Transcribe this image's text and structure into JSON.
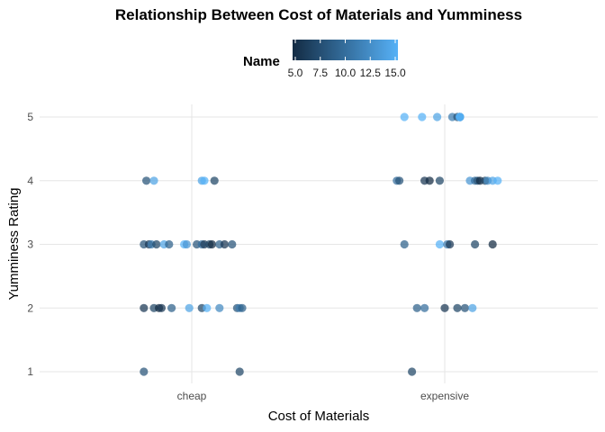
{
  "chart_data": {
    "type": "scatter",
    "title": "Relationship Between Cost of Materials and Yumminess",
    "xlabel": "Cost of Materials",
    "ylabel": "Yumminess Rating",
    "categories": [
      "cheap",
      "expensive"
    ],
    "yticks": [
      1,
      2,
      3,
      4,
      5
    ],
    "ylim": [
      0.8,
      5.2
    ],
    "grid": true,
    "legend": {
      "title": "Name",
      "placement": "top",
      "ticks": [
        "5.0",
        "7.5",
        "10.0",
        "12.5",
        "15.0"
      ],
      "range": [
        5,
        15
      ],
      "color_low": "#132B43",
      "color_high": "#56B1F7"
    },
    "points": [
      {
        "x": "cheap",
        "jitter": -0.19,
        "y": 1,
        "color_value": 8
      },
      {
        "x": "cheap",
        "jitter": 0.19,
        "y": 1,
        "color_value": 7
      },
      {
        "x": "cheap",
        "jitter": -0.19,
        "y": 2,
        "color_value": 6
      },
      {
        "x": "cheap",
        "jitter": -0.15,
        "y": 2,
        "color_value": 7
      },
      {
        "x": "cheap",
        "jitter": -0.13,
        "y": 2,
        "color_value": 5
      },
      {
        "x": "cheap",
        "jitter": -0.12,
        "y": 2,
        "color_value": 6
      },
      {
        "x": "cheap",
        "jitter": -0.08,
        "y": 2,
        "color_value": 9
      },
      {
        "x": "cheap",
        "jitter": -0.01,
        "y": 2,
        "color_value": 14
      },
      {
        "x": "cheap",
        "jitter": 0.04,
        "y": 2,
        "color_value": 7
      },
      {
        "x": "cheap",
        "jitter": 0.06,
        "y": 2,
        "color_value": 15
      },
      {
        "x": "cheap",
        "jitter": 0.11,
        "y": 2,
        "color_value": 12
      },
      {
        "x": "cheap",
        "jitter": 0.18,
        "y": 2,
        "color_value": 8
      },
      {
        "x": "cheap",
        "jitter": 0.19,
        "y": 2,
        "color_value": 11
      },
      {
        "x": "cheap",
        "jitter": 0.2,
        "y": 2,
        "color_value": 9
      },
      {
        "x": "cheap",
        "jitter": -0.19,
        "y": 3,
        "color_value": 8
      },
      {
        "x": "cheap",
        "jitter": -0.17,
        "y": 3,
        "color_value": 6
      },
      {
        "x": "cheap",
        "jitter": -0.16,
        "y": 3,
        "color_value": 11
      },
      {
        "x": "cheap",
        "jitter": -0.14,
        "y": 3,
        "color_value": 7
      },
      {
        "x": "cheap",
        "jitter": -0.11,
        "y": 3,
        "color_value": 14
      },
      {
        "x": "cheap",
        "jitter": -0.09,
        "y": 3,
        "color_value": 9
      },
      {
        "x": "cheap",
        "jitter": -0.03,
        "y": 3,
        "color_value": 15
      },
      {
        "x": "cheap",
        "jitter": -0.02,
        "y": 3,
        "color_value": 13
      },
      {
        "x": "cheap",
        "jitter": 0.02,
        "y": 3,
        "color_value": 8
      },
      {
        "x": "cheap",
        "jitter": 0.04,
        "y": 3,
        "color_value": 10
      },
      {
        "x": "cheap",
        "jitter": 0.05,
        "y": 3,
        "color_value": 6
      },
      {
        "x": "cheap",
        "jitter": 0.07,
        "y": 3,
        "color_value": 7
      },
      {
        "x": "cheap",
        "jitter": 0.08,
        "y": 3,
        "color_value": 5
      },
      {
        "x": "cheap",
        "jitter": 0.11,
        "y": 3,
        "color_value": 9
      },
      {
        "x": "cheap",
        "jitter": 0.13,
        "y": 3,
        "color_value": 6
      },
      {
        "x": "cheap",
        "jitter": 0.16,
        "y": 3,
        "color_value": 8
      },
      {
        "x": "cheap",
        "jitter": -0.18,
        "y": 4,
        "color_value": 8
      },
      {
        "x": "cheap",
        "jitter": -0.15,
        "y": 4,
        "color_value": 14
      },
      {
        "x": "cheap",
        "jitter": 0.04,
        "y": 4,
        "color_value": 14
      },
      {
        "x": "cheap",
        "jitter": 0.05,
        "y": 4,
        "color_value": 15
      },
      {
        "x": "cheap",
        "jitter": 0.09,
        "y": 4,
        "color_value": 7
      },
      {
        "x": "expensive",
        "jitter": -0.16,
        "y": 5,
        "color_value": 15
      },
      {
        "x": "expensive",
        "jitter": -0.09,
        "y": 5,
        "color_value": 15
      },
      {
        "x": "expensive",
        "jitter": -0.03,
        "y": 5,
        "color_value": 14
      },
      {
        "x": "expensive",
        "jitter": 0.03,
        "y": 5,
        "color_value": 11
      },
      {
        "x": "expensive",
        "jitter": 0.05,
        "y": 5,
        "color_value": 8
      },
      {
        "x": "expensive",
        "jitter": 0.06,
        "y": 5,
        "color_value": 10
      },
      {
        "x": "expensive",
        "jitter": 0.06,
        "y": 5,
        "color_value": 12
      },
      {
        "x": "expensive",
        "jitter": 0.06,
        "y": 5,
        "color_value": 13
      },
      {
        "x": "expensive",
        "jitter": 0.06,
        "y": 5,
        "color_value": 14
      },
      {
        "x": "expensive",
        "jitter": 0.06,
        "y": 5,
        "color_value": 13
      },
      {
        "x": "expensive",
        "jitter": 0.06,
        "y": 5,
        "color_value": 14
      },
      {
        "x": "expensive",
        "jitter": 0.06,
        "y": 5,
        "color_value": 15
      },
      {
        "x": "expensive",
        "jitter": -0.19,
        "y": 4,
        "color_value": 10
      },
      {
        "x": "expensive",
        "jitter": -0.18,
        "y": 4,
        "color_value": 8
      },
      {
        "x": "expensive",
        "jitter": -0.08,
        "y": 4,
        "color_value": 6
      },
      {
        "x": "expensive",
        "jitter": -0.06,
        "y": 4,
        "color_value": 5
      },
      {
        "x": "expensive",
        "jitter": -0.02,
        "y": 4,
        "color_value": 7
      },
      {
        "x": "expensive",
        "jitter": 0.1,
        "y": 4,
        "color_value": 13
      },
      {
        "x": "expensive",
        "jitter": 0.12,
        "y": 4,
        "color_value": 10
      },
      {
        "x": "expensive",
        "jitter": 0.13,
        "y": 4,
        "color_value": 8
      },
      {
        "x": "expensive",
        "jitter": 0.14,
        "y": 4,
        "color_value": 5
      },
      {
        "x": "expensive",
        "jitter": 0.16,
        "y": 4,
        "color_value": 7
      },
      {
        "x": "expensive",
        "jitter": 0.17,
        "y": 4,
        "color_value": 12
      },
      {
        "x": "expensive",
        "jitter": 0.19,
        "y": 4,
        "color_value": 14
      },
      {
        "x": "expensive",
        "jitter": 0.21,
        "y": 4,
        "color_value": 15
      },
      {
        "x": "expensive",
        "jitter": -0.16,
        "y": 3,
        "color_value": 9
      },
      {
        "x": "expensive",
        "jitter": -0.02,
        "y": 3,
        "color_value": 15
      },
      {
        "x": "expensive",
        "jitter": 0.01,
        "y": 3,
        "color_value": 11
      },
      {
        "x": "expensive",
        "jitter": 0.02,
        "y": 3,
        "color_value": 6
      },
      {
        "x": "expensive",
        "jitter": 0.12,
        "y": 3,
        "color_value": 7
      },
      {
        "x": "expensive",
        "jitter": 0.19,
        "y": 3,
        "color_value": 5
      },
      {
        "x": "expensive",
        "jitter": -0.11,
        "y": 2,
        "color_value": 9
      },
      {
        "x": "expensive",
        "jitter": -0.08,
        "y": 2,
        "color_value": 10
      },
      {
        "x": "expensive",
        "jitter": 0.0,
        "y": 2,
        "color_value": 6
      },
      {
        "x": "expensive",
        "jitter": 0.05,
        "y": 2,
        "color_value": 7
      },
      {
        "x": "expensive",
        "jitter": 0.08,
        "y": 2,
        "color_value": 8
      },
      {
        "x": "expensive",
        "jitter": 0.11,
        "y": 2,
        "color_value": 14
      },
      {
        "x": "expensive",
        "jitter": -0.13,
        "y": 1,
        "color_value": 7
      }
    ]
  }
}
